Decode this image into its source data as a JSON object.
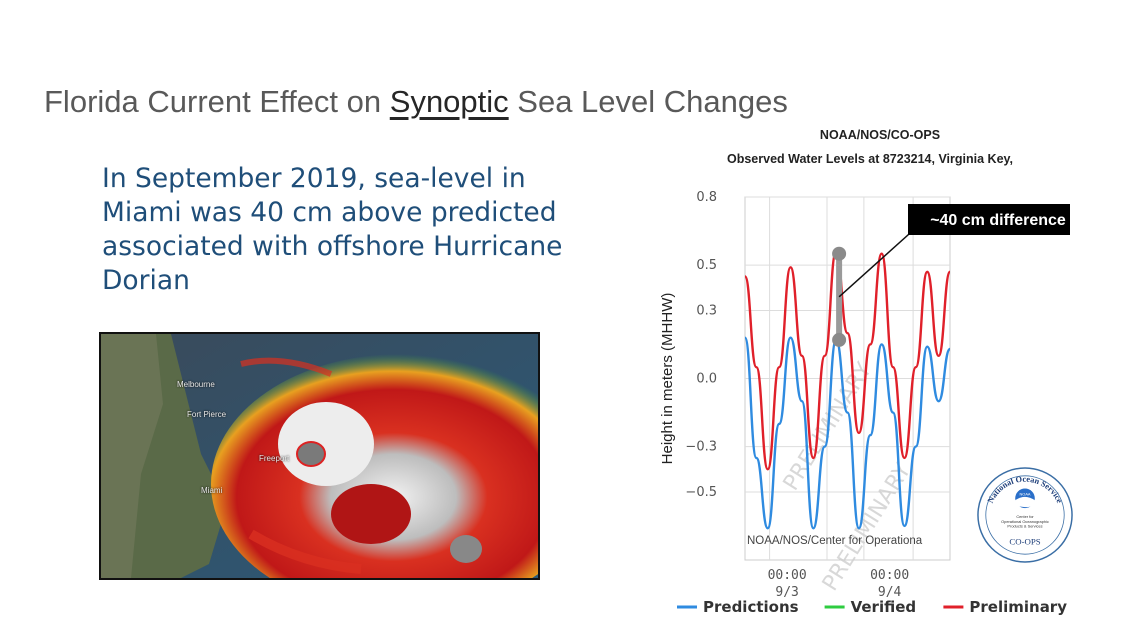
{
  "slide": {
    "title_prefix": "Florida Current Effect on ",
    "title_underlined": "Synoptic",
    "title_suffix": " Sea Level Changes",
    "body_lines": [
      "In September 2019, sea-level in",
      "Miami was 40 cm above predicted",
      "associated with offshore Hurricane",
      "Dorian"
    ]
  },
  "satellite": {
    "labels": [
      "Melbourne",
      "Fort Pierce",
      "Freeport",
      "Miami"
    ]
  },
  "logo": {
    "ring_text": "National Ocean Service",
    "center_text": "NOAA",
    "sub_text_lines": [
      "Center for",
      "Operational Oceanographic",
      "Products & Services"
    ],
    "bottom_text": "CO-OPS"
  },
  "chart_data": {
    "type": "line",
    "title_line1": "NOAA/NOS/CO-OPS",
    "title_line2": "Observed Water Levels at 8723214, Virginia Key,",
    "ylabel": "Height in meters (MHHW)",
    "ylim": [
      -0.8,
      0.8
    ],
    "yticks": [
      0.8,
      0.5,
      0.3,
      0.0,
      -0.3,
      -0.5
    ],
    "ytick_labels": [
      "0.8",
      "0.5",
      "0.3",
      "0.0",
      "−0.3",
      "−0.5"
    ],
    "x_start": "9/2 12:00",
    "x_end": "9/4 18:00",
    "xticks": [
      {
        "label_time": "00:00",
        "label_date": "9/3"
      },
      {
        "label_time": "00:00",
        "label_date": "9/4"
      }
    ],
    "grid": true,
    "watermark": "PRELIMINARY",
    "footer_text": "NOAA/NOS/Center for Operationa",
    "annotation": {
      "text": "~40 cm difference",
      "top_value": 0.55,
      "bottom_value": 0.17
    },
    "legend": [
      "Predictions",
      "Verified",
      "Preliminary"
    ],
    "colors": {
      "Predictions": "#2f8be0",
      "Verified": "#2ecc40",
      "Preliminary": "#e0202a"
    },
    "series": [
      {
        "name": "Predictions",
        "x_hours": [
          0,
          3,
          6,
          9,
          12,
          15,
          18,
          21,
          24,
          27,
          30,
          33,
          36,
          39,
          42,
          45,
          48,
          51,
          54
        ],
        "values": [
          0.18,
          -0.35,
          -0.66,
          -0.2,
          0.18,
          -0.1,
          -0.66,
          -0.3,
          0.17,
          -0.15,
          -0.66,
          -0.25,
          0.15,
          -0.15,
          -0.65,
          -0.3,
          0.14,
          -0.1,
          0.13
        ]
      },
      {
        "name": "Preliminary",
        "x_hours": [
          0,
          3,
          6,
          9,
          12,
          15,
          18,
          21,
          24,
          27,
          30,
          33,
          36,
          39,
          42,
          45,
          48,
          51,
          54
        ],
        "values": [
          0.45,
          0.05,
          -0.4,
          0.05,
          0.49,
          0.1,
          -0.35,
          0.1,
          0.56,
          0.2,
          -0.24,
          0.15,
          0.55,
          0.05,
          -0.35,
          0.05,
          0.47,
          0.1,
          0.47
        ]
      }
    ]
  }
}
